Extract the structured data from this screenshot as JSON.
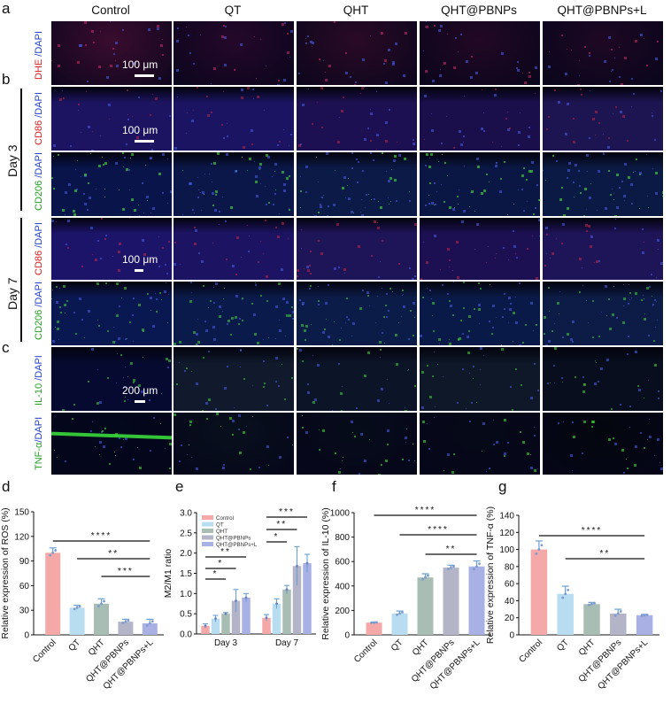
{
  "figure": {
    "panel_letters": {
      "a": "a",
      "b": "b",
      "c": "c",
      "d": "d",
      "e": "e",
      "f": "f",
      "g": "g"
    },
    "columns": [
      "Control",
      "QT",
      "QHT",
      "QHT@PBNPs",
      "QHT@PBNPs+L"
    ],
    "day_labels": {
      "day3": "Day 3",
      "day7": "Day 7"
    },
    "rows": [
      {
        "key": "dhe",
        "label_a": "DHE",
        "label_b": " /DAPI",
        "color": "#d92020",
        "scale": "100 μm"
      },
      {
        "key": "cd86_d3",
        "label_a": "CD86",
        "label_b": " /DAPI",
        "color": "#d92020",
        "scale": "100 μm"
      },
      {
        "key": "cd206_d3",
        "label_a": "CD206",
        "label_b": " /DAPI",
        "color": "#22a022",
        "scale": ""
      },
      {
        "key": "cd86_d7",
        "label_a": "CD86",
        "label_b": " /DAPI",
        "color": "#d92020",
        "scale": "100 μm"
      },
      {
        "key": "cd206_d7",
        "label_a": "CD206",
        "label_b": " /DAPI",
        "color": "#22a022",
        "scale": ""
      },
      {
        "key": "il10",
        "label_a": "IL-10",
        "label_b": " /DAPI",
        "color": "#22a022",
        "scale": "200 μm"
      },
      {
        "key": "tnf",
        "label_a": "TNF-α",
        "label_b": "/DAPI",
        "color": "#22a022",
        "scale": ""
      }
    ],
    "dapi_color": "#2040d0"
  },
  "chart_data": [
    {
      "panel": "d",
      "type": "bar",
      "categories": [
        "Control",
        "QT",
        "QHT",
        "QHT@PBNPs",
        "QHT@PBNPs+L"
      ],
      "values": [
        100,
        33,
        38,
        16,
        14
      ],
      "errors": [
        6,
        3,
        6,
        3,
        5
      ],
      "ylabel": "Relative expression of ROS (%)",
      "ylim": [
        0,
        150
      ],
      "yticks": [
        0,
        30,
        60,
        90,
        120,
        150
      ],
      "colors": [
        "#f4a8a8",
        "#b8dcf0",
        "#a8bdb4",
        "#b4b4c8",
        "#a8b0e4"
      ],
      "significance": [
        {
          "from": 0,
          "to": 4,
          "label": "****"
        },
        {
          "from": 1,
          "to": 4,
          "label": "**"
        },
        {
          "from": 2,
          "to": 4,
          "label": "***"
        }
      ]
    },
    {
      "panel": "e",
      "type": "bar",
      "categories": [
        "Day 3",
        "Day 7"
      ],
      "series": [
        {
          "name": "Control",
          "values": [
            0.2,
            0.4
          ],
          "errors": [
            0.05,
            0.08
          ],
          "color": "#f4a8a8"
        },
        {
          "name": "QT",
          "values": [
            0.38,
            0.75
          ],
          "errors": [
            0.08,
            0.12
          ],
          "color": "#b8dcf0"
        },
        {
          "name": "QHT",
          "values": [
            0.5,
            1.1
          ],
          "errors": [
            0.03,
            0.1
          ],
          "color": "#a8bdb4"
        },
        {
          "name": "QHT@PBNPs",
          "values": [
            0.82,
            1.68
          ],
          "errors": [
            0.28,
            0.48
          ],
          "color": "#b4b4c8"
        },
        {
          "name": "QHT@PBNPs+L",
          "values": [
            0.9,
            1.75
          ],
          "errors": [
            0.1,
            0.22
          ],
          "color": "#a8b0e4"
        }
      ],
      "ylabel": "M2/M1 ratio",
      "ylim": [
        0,
        3.0
      ],
      "yticks": [
        "0.0",
        "0.5",
        "1.0",
        "1.5",
        "2.0",
        "2.5",
        "3.0"
      ],
      "significance": [
        {
          "group": 0,
          "from": 0,
          "to": 4,
          "label": "**"
        },
        {
          "group": 0,
          "from": 0,
          "to": 3,
          "label": "*"
        },
        {
          "group": 0,
          "from": 0,
          "to": 2,
          "label": "*"
        },
        {
          "group": 1,
          "from": 0,
          "to": 4,
          "label": "***"
        },
        {
          "group": 1,
          "from": 0,
          "to": 3,
          "label": "**"
        },
        {
          "group": 1,
          "from": 0,
          "to": 2,
          "label": "*"
        }
      ],
      "legend": "top-left"
    },
    {
      "panel": "f",
      "type": "bar",
      "categories": [
        "Control",
        "QT",
        "QHT",
        "QHT@PBNPs",
        "QHT@PBNPs+L"
      ],
      "values": [
        100,
        175,
        470,
        550,
        560
      ],
      "errors": [
        5,
        20,
        30,
        20,
        45
      ],
      "ylabel": "Relative expression of IL-10 (%)",
      "ylim": [
        0,
        1000
      ],
      "yticks": [
        0,
        200,
        400,
        600,
        800,
        1000
      ],
      "colors": [
        "#f4a8a8",
        "#b8dcf0",
        "#a8bdb4",
        "#b4b4c8",
        "#a8b0e4"
      ],
      "significance": [
        {
          "from": 0,
          "to": 4,
          "label": "****"
        },
        {
          "from": 1,
          "to": 4,
          "label": "****"
        },
        {
          "from": 2,
          "to": 4,
          "label": "**"
        }
      ]
    },
    {
      "panel": "g",
      "type": "bar",
      "categories": [
        "Control",
        "QT",
        "QHT",
        "QHT@PBNPs",
        "QHT@PBNPs+L"
      ],
      "values": [
        100,
        48,
        36,
        25,
        23
      ],
      "errors": [
        10,
        9,
        2,
        5,
        1
      ],
      "ylabel": "Relative expression of TNF-α (%)",
      "ylim": [
        0,
        140
      ],
      "yticks": [
        0,
        20,
        40,
        60,
        80,
        100,
        120,
        140
      ],
      "colors": [
        "#f4a8a8",
        "#b8dcf0",
        "#a8bdb4",
        "#b4b4c8",
        "#a8b0e4"
      ],
      "significance": [
        {
          "from": 0,
          "to": 4,
          "label": "****"
        },
        {
          "from": 1,
          "to": 4,
          "label": "**"
        }
      ]
    }
  ]
}
